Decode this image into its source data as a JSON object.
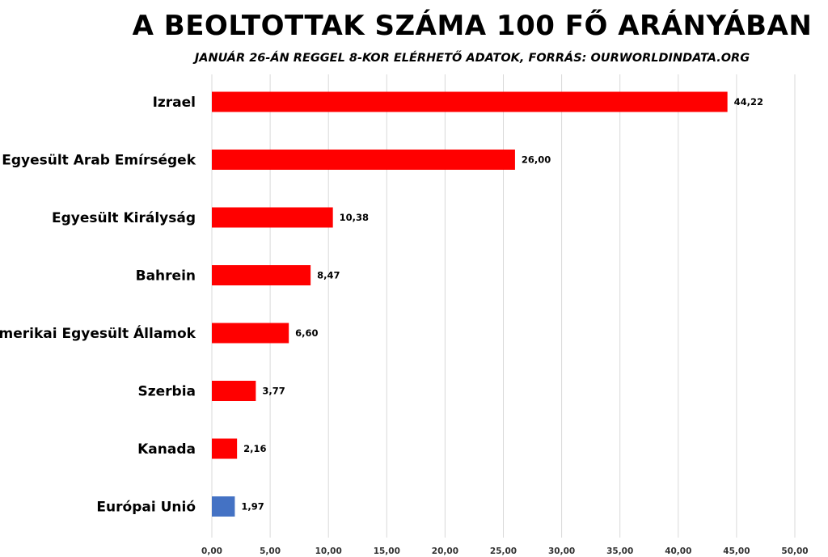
{
  "chart_data": {
    "type": "bar",
    "orientation": "horizontal",
    "title": "A BEOLTOTTAK SZÁMA 100 FŐ ARÁNYÁBAN",
    "subtitle": "JANUÁR 26-ÁN REGGEL 8-KOR ELÉRHETŐ ADATOK, FORRÁS: OURWORLDINDATA.ORG",
    "categories": [
      "Izrael",
      "Egyesült Arab Emírségek",
      "Egyesült Királyság",
      "Bahrein",
      "Amerikai Egyesült Államok",
      "Szerbia",
      "Kanada",
      "Európai Unió"
    ],
    "values": [
      44.22,
      26.0,
      10.38,
      8.47,
      6.6,
      3.77,
      2.16,
      1.97
    ],
    "value_labels": [
      "44,22",
      "26,00",
      "10,38",
      "8,47",
      "6,60",
      "3,77",
      "2,16",
      "1,97"
    ],
    "bar_colors": [
      "#ff0000",
      "#ff0000",
      "#ff0000",
      "#ff0000",
      "#ff0000",
      "#ff0000",
      "#ff0000",
      "#4472c4"
    ],
    "xlim": [
      0,
      50
    ],
    "x_ticks": [
      0,
      5,
      10,
      15,
      20,
      25,
      30,
      35,
      40,
      45,
      50
    ],
    "x_tick_labels": [
      "0,00",
      "5,00",
      "10,00",
      "15,00",
      "20,00",
      "25,00",
      "30,00",
      "35,00",
      "40,00",
      "45,00",
      "50,00"
    ],
    "grid": "vertical",
    "legend": "none"
  }
}
